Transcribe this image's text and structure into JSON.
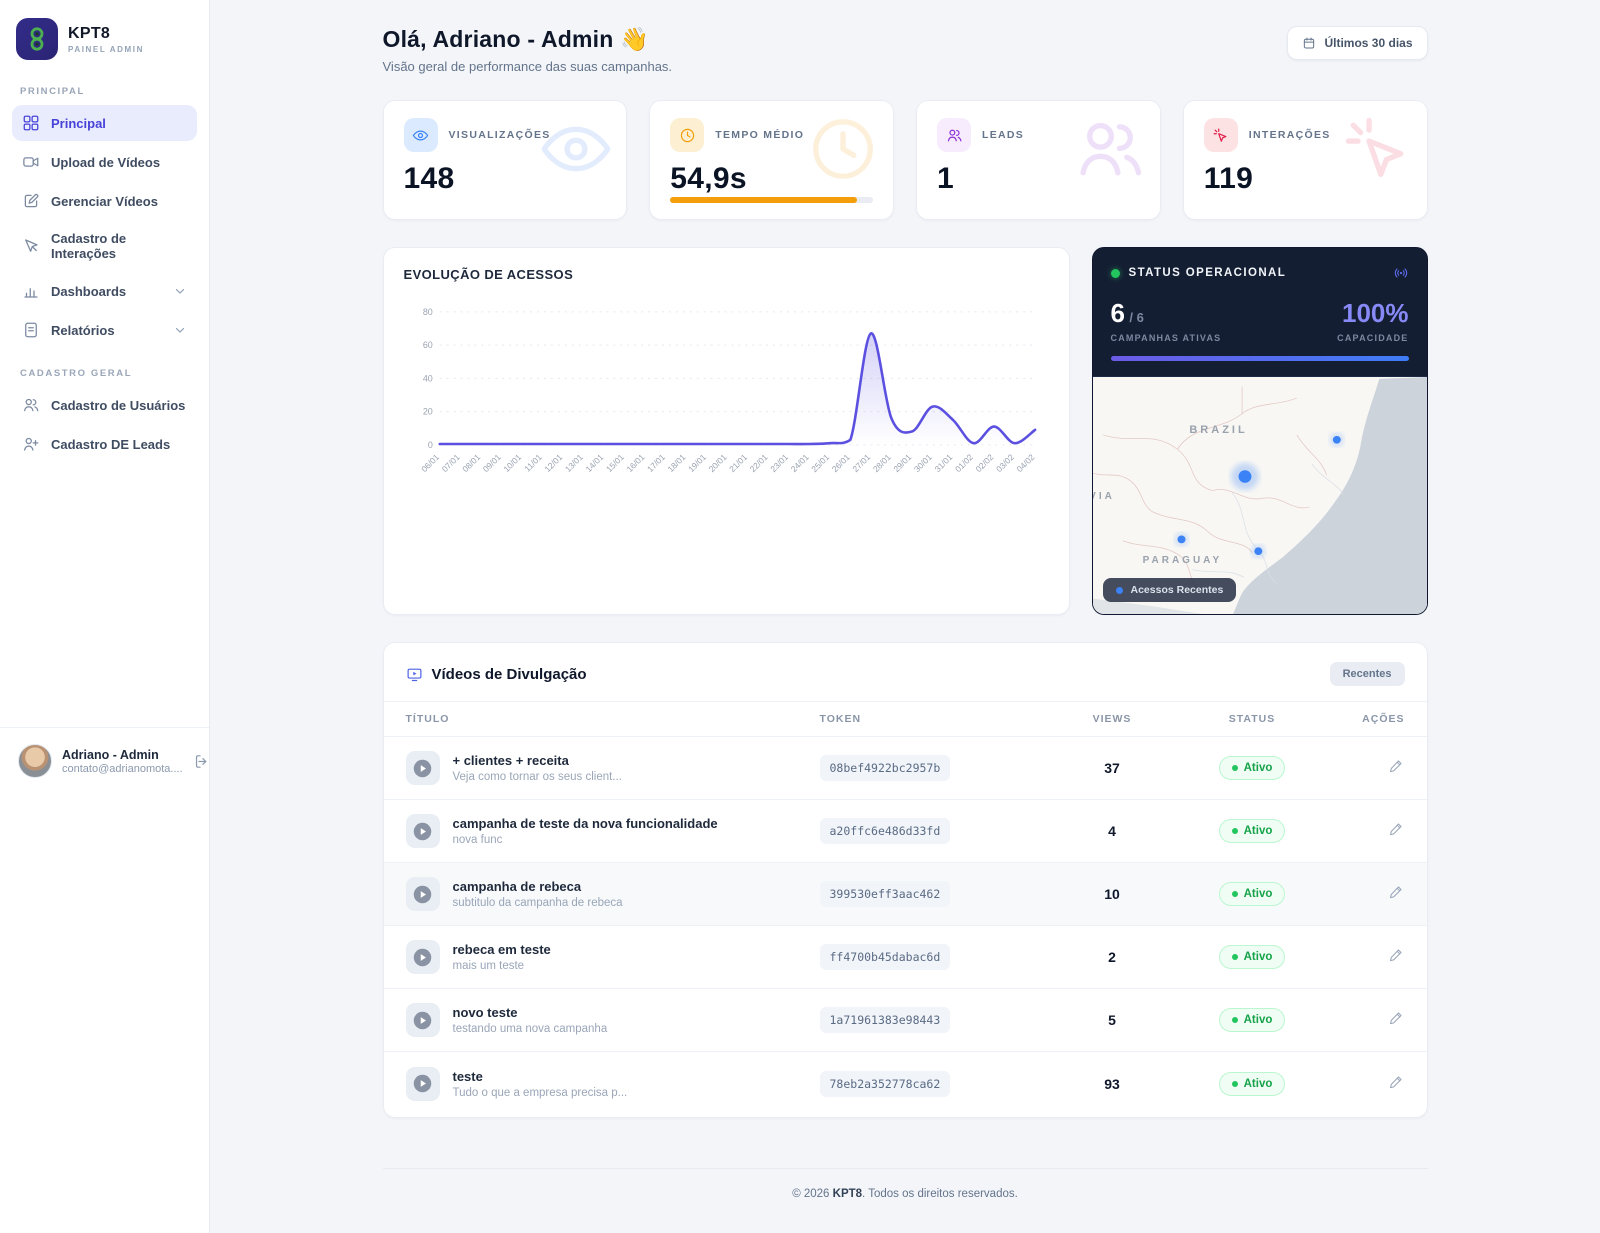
{
  "brand": {
    "name": "KPT8",
    "subtitle": "PAINEL ADMIN"
  },
  "sidebar": {
    "sections": [
      {
        "label": "PRINCIPAL",
        "items": [
          {
            "label": "Principal",
            "icon": "grid-icon",
            "active": true,
            "chevron": false
          },
          {
            "label": "Upload de Vídeos",
            "icon": "video-camera-icon",
            "active": false,
            "chevron": false
          },
          {
            "label": "Gerenciar Vídeos",
            "icon": "edit-square-icon",
            "active": false,
            "chevron": false
          },
          {
            "label": "Cadastro de Interações",
            "icon": "cursor-icon",
            "active": false,
            "chevron": false
          },
          {
            "label": "Dashboards",
            "icon": "bar-chart-icon",
            "active": false,
            "chevron": true
          },
          {
            "label": "Relatórios",
            "icon": "document-icon",
            "active": false,
            "chevron": true
          }
        ]
      },
      {
        "label": "CADASTRO GERAL",
        "items": [
          {
            "label": "Cadastro de Usuários",
            "icon": "users-icon",
            "active": false,
            "chevron": false
          },
          {
            "label": "Cadastro DE Leads",
            "icon": "user-plus-icon",
            "active": false,
            "chevron": false
          }
        ]
      }
    ],
    "user": {
      "name": "Adriano - Admin",
      "email": "contato@adrianomota...."
    }
  },
  "header": {
    "title": "Olá, Adriano - Admin",
    "wave": "👋",
    "subtitle": "Visão geral de performance das suas campanhas.",
    "range_button": "Últimos 30 dias"
  },
  "stats": [
    {
      "label": "VISUALIZAÇÕES",
      "value": "148",
      "icon": "eye-icon",
      "accent": "#3b82f6",
      "tint": "#dbeafe"
    },
    {
      "label": "TEMPO MÉDIO",
      "value": "54,9s",
      "icon": "clock-icon",
      "accent": "#f59e0b",
      "tint": "#fdf0d2",
      "progress": 92
    },
    {
      "label": "LEADS",
      "value": "1",
      "icon": "users-icon",
      "accent": "#8b2fd6",
      "tint": "#f6ecfd"
    },
    {
      "label": "INTERAÇÕES",
      "value": "119",
      "icon": "cursor-click-icon",
      "accent": "#e11d48",
      "tint": "#fde2e4"
    }
  ],
  "chart_card": {
    "title": "EVOLUÇÃO DE ACESSOS"
  },
  "chart_data": {
    "type": "line",
    "title": "EVOLUÇÃO DE ACESSOS",
    "categories": [
      "06/01",
      "07/01",
      "08/01",
      "09/01",
      "10/01",
      "11/01",
      "12/01",
      "13/01",
      "14/01",
      "15/01",
      "16/01",
      "17/01",
      "18/01",
      "19/01",
      "20/01",
      "21/01",
      "22/01",
      "23/01",
      "24/01",
      "25/01",
      "26/01",
      "27/01",
      "28/01",
      "29/01",
      "30/01",
      "31/01",
      "01/02",
      "02/02",
      "03/02",
      "04/02"
    ],
    "values": [
      0.5,
      0.5,
      0.5,
      0.5,
      0.5,
      0.5,
      0.5,
      0.5,
      0.5,
      0.5,
      0.5,
      0.5,
      0.5,
      0.5,
      0.5,
      0.5,
      0.5,
      0.5,
      0.5,
      1,
      3,
      67,
      16,
      8,
      23,
      15,
      1,
      11,
      1,
      9
    ],
    "yticks": [
      0,
      20,
      40,
      60,
      80
    ],
    "ylim": [
      0,
      80
    ],
    "xlabel": "",
    "ylabel": "",
    "line_color": "#5b50e0",
    "grid": "dashed horizontal",
    "legend_position": "none"
  },
  "status_card": {
    "title": "STATUS OPERACIONAL",
    "active_value": "6",
    "active_total": "/ 6",
    "active_label": "CAMPANHAS ATIVAS",
    "capacity_value": "100%",
    "capacity_label": "CAPACIDADE",
    "legend": "Acessos Recentes",
    "map_labels": {
      "brazil": "BRAZIL",
      "paraguay": "PARAGUAY",
      "bolivia": "VIA"
    },
    "map_points": [
      {
        "x": 45.5,
        "y": 42.0,
        "size": "large"
      },
      {
        "x": 73.0,
        "y": 26.5,
        "size": "small"
      },
      {
        "x": 26.5,
        "y": 68.5,
        "size": "small"
      },
      {
        "x": 49.5,
        "y": 73.5,
        "size": "small"
      }
    ],
    "accent": "#3b82f6"
  },
  "videos": {
    "title": "Vídeos de Divulgação",
    "badge": "Recentes",
    "columns": [
      "TÍTULO",
      "TOKEN",
      "VIEWS",
      "STATUS",
      "AÇÕES"
    ],
    "rows": [
      {
        "title": "+ clientes + receita",
        "subtitle": "Veja como tornar os seus client...",
        "token": "08bef4922bc2957b",
        "views": "37",
        "status": "Ativo",
        "highlighted": false
      },
      {
        "title": "campanha de teste da nova funcionalidade",
        "subtitle": "nova func",
        "token": "a20ffc6e486d33fd",
        "views": "4",
        "status": "Ativo",
        "highlighted": false
      },
      {
        "title": "campanha de rebeca",
        "subtitle": "subtitulo da campanha de rebeca",
        "token": "399530eff3aac462",
        "views": "10",
        "status": "Ativo",
        "highlighted": true
      },
      {
        "title": "rebeca em teste",
        "subtitle": "mais um teste",
        "token": "ff4700b45dabac6d",
        "views": "2",
        "status": "Ativo",
        "highlighted": false
      },
      {
        "title": "novo teste",
        "subtitle": "testando uma nova campanha",
        "token": "1a71961383e98443",
        "views": "5",
        "status": "Ativo",
        "highlighted": false
      },
      {
        "title": "teste",
        "subtitle": "Tudo o que a empresa precisa p...",
        "token": "78eb2a352778ca62",
        "views": "93",
        "status": "Ativo",
        "highlighted": false
      }
    ]
  },
  "footer": {
    "prefix": "© 2026 ",
    "brand": "KPT8",
    "suffix": ". Todos os direitos reservados."
  }
}
